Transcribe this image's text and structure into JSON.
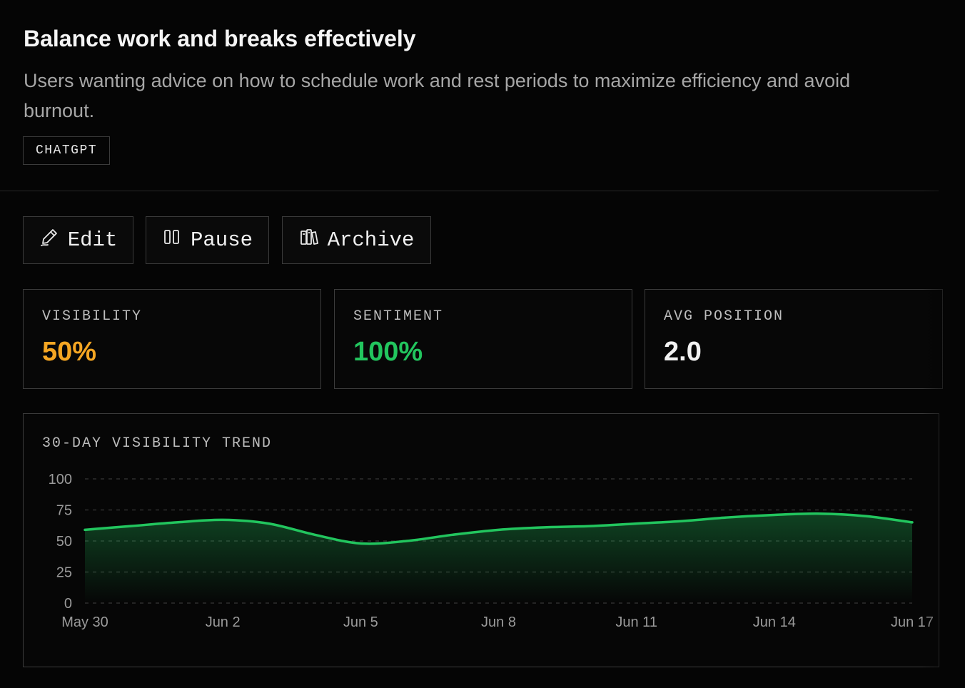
{
  "header": {
    "title": "Balance work and breaks effectively",
    "description": "Users wanting advice on how to schedule work and rest periods to maximize efficiency and avoid burnout.",
    "tag": "CHATGPT"
  },
  "actions": [
    {
      "label": "Edit",
      "icon": "pen-icon"
    },
    {
      "label": "Pause",
      "icon": "pause-icon"
    },
    {
      "label": "Archive",
      "icon": "archive-icon"
    }
  ],
  "metrics": [
    {
      "label": "VISIBILITY",
      "value": "50%",
      "color": "#f5a623"
    },
    {
      "label": "SENTIMENT",
      "value": "100%",
      "color": "#22c55e"
    },
    {
      "label": "AVG POSITION",
      "value": "2.0",
      "color": "#f2f2f2"
    }
  ],
  "chart_data": {
    "type": "area",
    "title": "30-DAY VISIBILITY TREND",
    "x": [
      "May 30",
      "May 31",
      "Jun 1",
      "Jun 2",
      "Jun 3",
      "Jun 4",
      "Jun 5",
      "Jun 6",
      "Jun 7",
      "Jun 8",
      "Jun 9",
      "Jun 10",
      "Jun 11",
      "Jun 12",
      "Jun 13",
      "Jun 14",
      "Jun 15",
      "Jun 16",
      "Jun 17"
    ],
    "x_tick_labels": [
      "May 30",
      "Jun 2",
      "Jun 5",
      "Jun 8",
      "Jun 11",
      "Jun 14",
      "Jun 17"
    ],
    "y_ticks": [
      0,
      25,
      50,
      75,
      100
    ],
    "values": [
      59,
      62,
      65,
      67,
      64,
      55,
      48,
      50,
      55,
      59,
      61,
      62,
      64,
      66,
      69,
      71,
      72,
      70,
      65
    ],
    "ylim": [
      0,
      100
    ],
    "grid": true,
    "line_color": "#22c55e"
  }
}
